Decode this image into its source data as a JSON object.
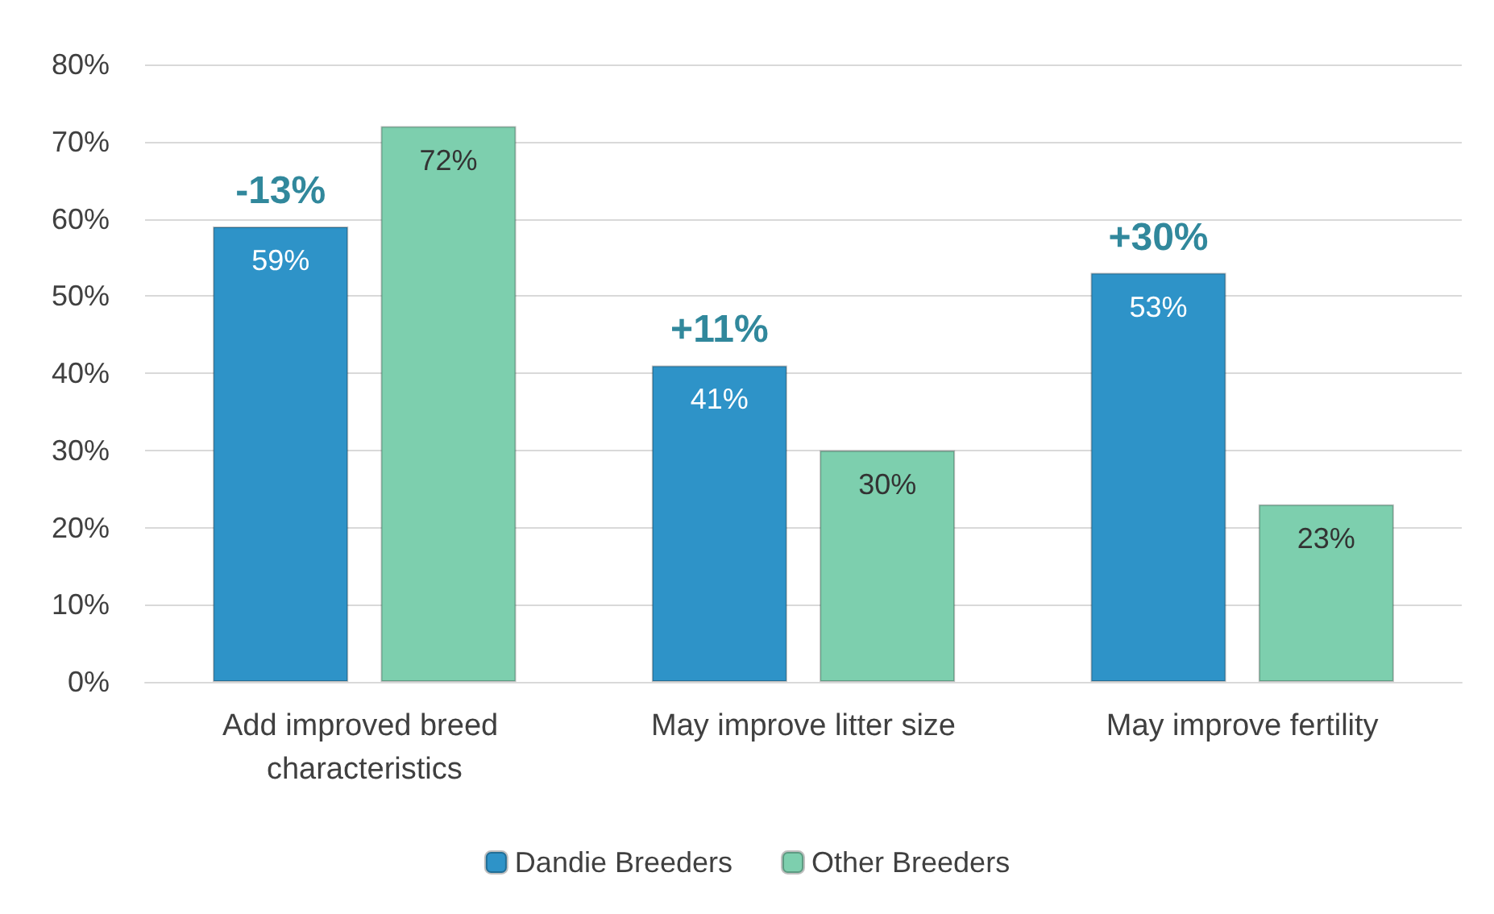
{
  "chart_data": {
    "type": "bar",
    "categories": [
      "Add improved breed characteristics",
      "May improve litter size",
      "May improve fertility"
    ],
    "series": [
      {
        "name": "Dandie Breeders",
        "color": "#2e93c8",
        "values": [
          59,
          41,
          53
        ],
        "value_labels": [
          "59%",
          "41%",
          "53%"
        ]
      },
      {
        "name": "Other Breeders",
        "color": "#7dcfae",
        "values": [
          72,
          30,
          23
        ],
        "value_labels": [
          "72%",
          "30%",
          "23%"
        ]
      }
    ],
    "ylim": [
      0,
      80
    ],
    "yticks": [
      {
        "value": 0,
        "label": "0%"
      },
      {
        "value": 10,
        "label": "10%"
      },
      {
        "value": 20,
        "label": "20%"
      },
      {
        "value": 30,
        "label": "30%"
      },
      {
        "value": 40,
        "label": "40%"
      },
      {
        "value": 50,
        "label": "50%"
      },
      {
        "value": 60,
        "label": "60%"
      },
      {
        "value": 70,
        "label": "70%"
      },
      {
        "value": 80,
        "label": "80%"
      }
    ],
    "annotations": [
      "-13%",
      "+11%",
      "+30%"
    ],
    "grid": "y",
    "legend": "bottom"
  }
}
